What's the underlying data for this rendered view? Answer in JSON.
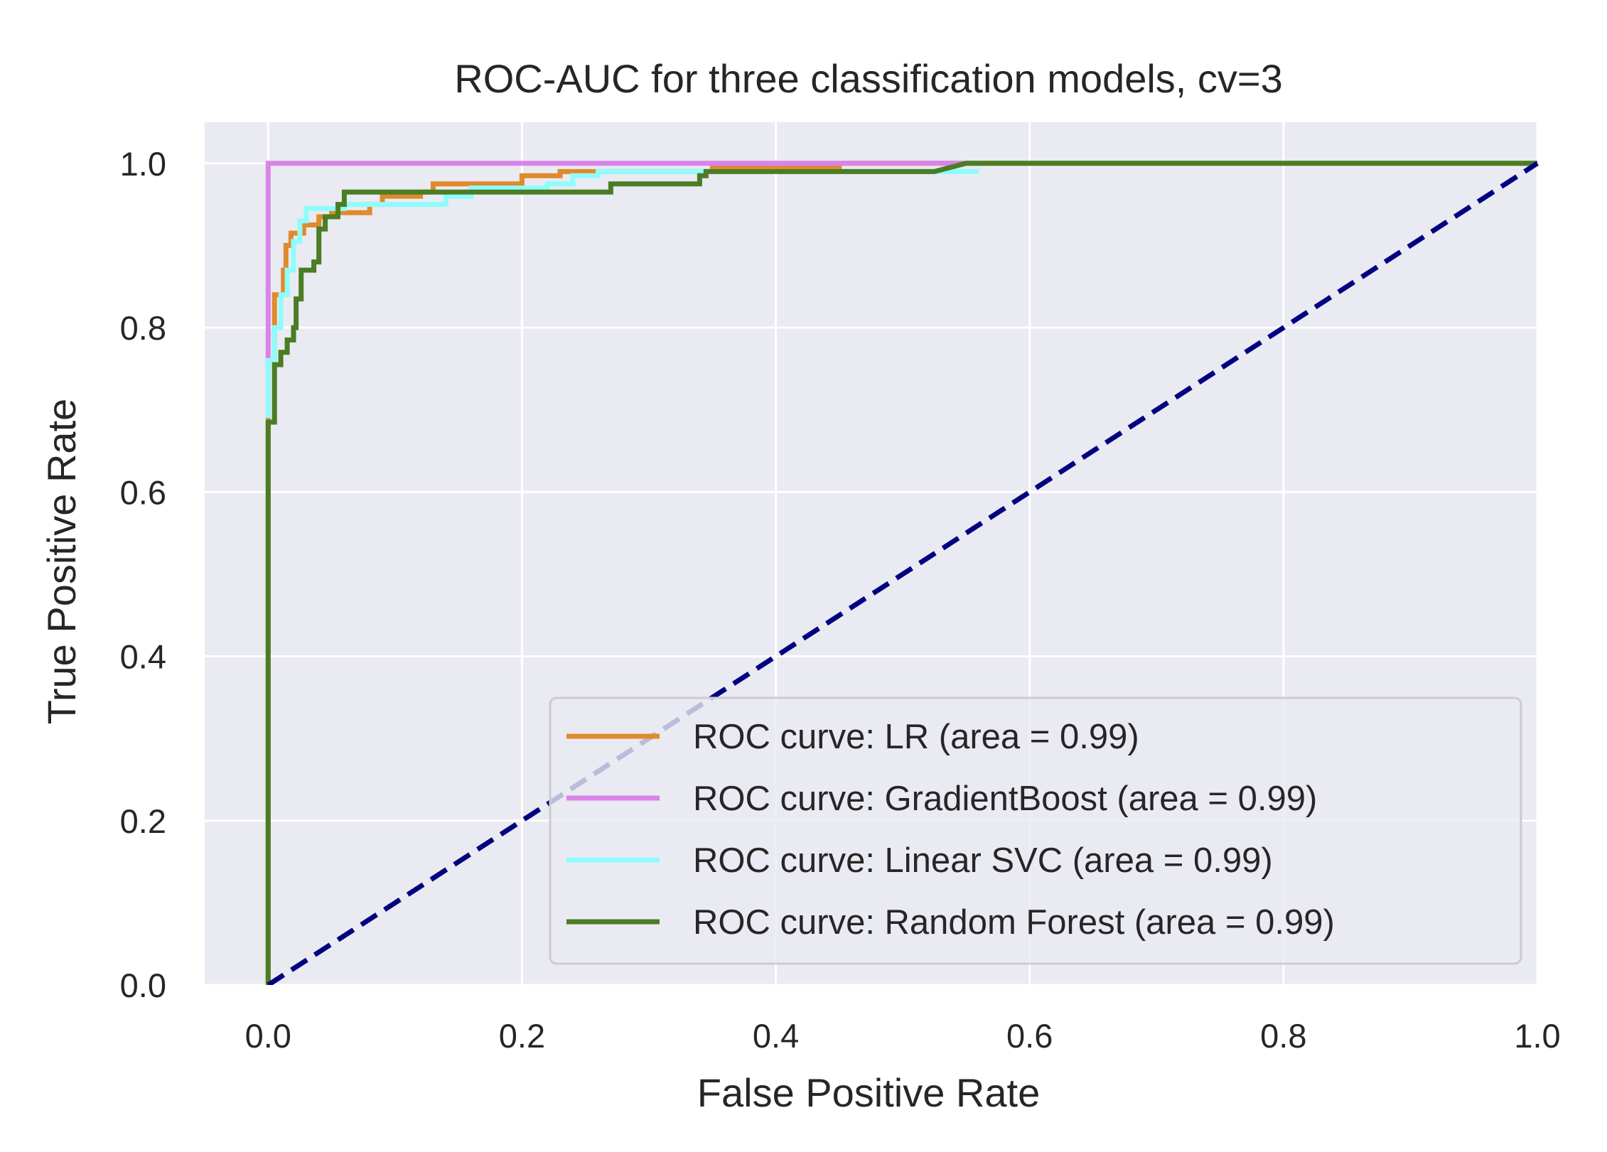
{
  "chart_data": {
    "type": "line",
    "title": "ROC-AUC for three classification models, cv=3",
    "xlabel": "False Positive Rate",
    "ylabel": "True Positive Rate",
    "xlim": [
      -0.05,
      1.0
    ],
    "ylim": [
      0.0,
      1.05
    ],
    "xticks": [
      0.0,
      0.2,
      0.4,
      0.6,
      0.8,
      1.0
    ],
    "xtick_labels": [
      "0.0",
      "0.2",
      "0.4",
      "0.6",
      "0.8",
      "1.0"
    ],
    "yticks": [
      0.0,
      0.2,
      0.4,
      0.6,
      0.8,
      1.0
    ],
    "ytick_labels": [
      "0.0",
      "0.2",
      "0.4",
      "0.6",
      "0.8",
      "1.0"
    ],
    "grid": true,
    "background": "#eaeaf2",
    "legend_position": "lower-right",
    "series": [
      {
        "name": "ROC curve: LR (area = 0.99)",
        "color": "#e08a2c",
        "style": "solid",
        "points": [
          [
            0,
            0
          ],
          [
            0,
            0.76
          ],
          [
            0.005,
            0.76
          ],
          [
            0.005,
            0.84
          ],
          [
            0.012,
            0.84
          ],
          [
            0.012,
            0.87
          ],
          [
            0.014,
            0.87
          ],
          [
            0.014,
            0.9
          ],
          [
            0.018,
            0.9
          ],
          [
            0.018,
            0.915
          ],
          [
            0.028,
            0.915
          ],
          [
            0.028,
            0.925
          ],
          [
            0.04,
            0.925
          ],
          [
            0.04,
            0.935
          ],
          [
            0.05,
            0.935
          ],
          [
            0.05,
            0.94
          ],
          [
            0.08,
            0.94
          ],
          [
            0.08,
            0.95
          ],
          [
            0.09,
            0.95
          ],
          [
            0.09,
            0.96
          ],
          [
            0.12,
            0.96
          ],
          [
            0.12,
            0.965
          ],
          [
            0.13,
            0.965
          ],
          [
            0.13,
            0.975
          ],
          [
            0.2,
            0.975
          ],
          [
            0.2,
            0.985
          ],
          [
            0.23,
            0.985
          ],
          [
            0.23,
            0.99
          ],
          [
            0.35,
            0.99
          ],
          [
            0.35,
            0.995
          ],
          [
            0.45,
            0.995
          ],
          [
            0.45,
            1.0
          ],
          [
            1.0,
            1.0
          ]
        ]
      },
      {
        "name": "ROC curve: GradientBoost (area = 0.99)",
        "color": "#d884e8",
        "style": "solid",
        "points": [
          [
            0,
            0.76
          ],
          [
            0,
            1.0
          ],
          [
            0.55,
            1.0
          ]
        ]
      },
      {
        "name": "ROC curve: Linear SVC (area = 0.99)",
        "color": "#8ffcfc",
        "style": "solid",
        "points": [
          [
            0,
            0.69
          ],
          [
            0,
            0.76
          ],
          [
            0.005,
            0.76
          ],
          [
            0.005,
            0.8
          ],
          [
            0.01,
            0.8
          ],
          [
            0.01,
            0.84
          ],
          [
            0.015,
            0.84
          ],
          [
            0.015,
            0.87
          ],
          [
            0.02,
            0.87
          ],
          [
            0.02,
            0.905
          ],
          [
            0.025,
            0.905
          ],
          [
            0.025,
            0.93
          ],
          [
            0.03,
            0.93
          ],
          [
            0.03,
            0.945
          ],
          [
            0.06,
            0.945
          ],
          [
            0.06,
            0.95
          ],
          [
            0.14,
            0.95
          ],
          [
            0.14,
            0.96
          ],
          [
            0.16,
            0.96
          ],
          [
            0.16,
            0.97
          ],
          [
            0.22,
            0.97
          ],
          [
            0.22,
            0.975
          ],
          [
            0.24,
            0.975
          ],
          [
            0.24,
            0.985
          ],
          [
            0.26,
            0.985
          ],
          [
            0.26,
            0.99
          ],
          [
            0.56,
            0.99
          ]
        ]
      },
      {
        "name": "ROC curve: Random Forest (area = 0.99)",
        "color": "#4a7d24",
        "style": "solid",
        "points": [
          [
            0,
            0
          ],
          [
            0,
            0.685
          ],
          [
            0.005,
            0.685
          ],
          [
            0.005,
            0.755
          ],
          [
            0.01,
            0.755
          ],
          [
            0.01,
            0.77
          ],
          [
            0.015,
            0.77
          ],
          [
            0.015,
            0.785
          ],
          [
            0.02,
            0.785
          ],
          [
            0.02,
            0.8
          ],
          [
            0.022,
            0.8
          ],
          [
            0.022,
            0.835
          ],
          [
            0.026,
            0.835
          ],
          [
            0.026,
            0.87
          ],
          [
            0.03,
            0.87
          ],
          [
            0.03,
            0.87
          ],
          [
            0.036,
            0.87
          ],
          [
            0.036,
            0.88
          ],
          [
            0.04,
            0.88
          ],
          [
            0.04,
            0.92
          ],
          [
            0.045,
            0.92
          ],
          [
            0.045,
            0.935
          ],
          [
            0.055,
            0.935
          ],
          [
            0.055,
            0.95
          ],
          [
            0.06,
            0.95
          ],
          [
            0.06,
            0.965
          ],
          [
            0.27,
            0.965
          ],
          [
            0.27,
            0.975
          ],
          [
            0.34,
            0.975
          ],
          [
            0.34,
            0.985
          ],
          [
            0.345,
            0.985
          ],
          [
            0.345,
            0.99
          ],
          [
            0.525,
            0.99
          ],
          [
            0.55,
            1.0
          ],
          [
            1.0,
            1.0
          ]
        ]
      },
      {
        "color": "#000080",
        "style": "dashed",
        "points": [
          [
            0,
            0
          ],
          [
            1,
            1
          ]
        ]
      }
    ]
  }
}
